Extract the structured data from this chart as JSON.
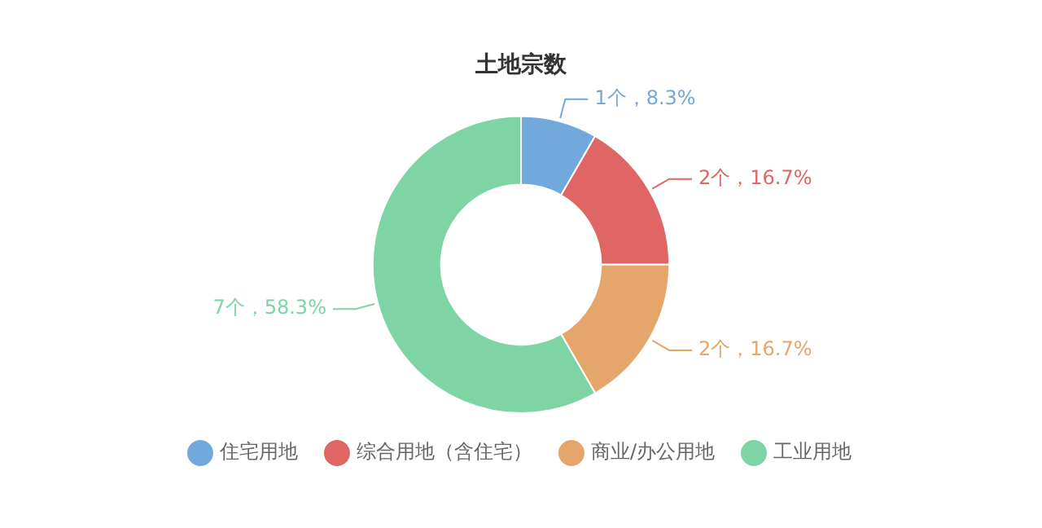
{
  "chart_data": {
    "type": "donut",
    "title": "土地宗数",
    "categories": [
      "住宅用地",
      "综合用地（含住宅）",
      "商业/办公用地",
      "工业用地"
    ],
    "values": [
      1,
      2,
      2,
      7
    ],
    "colors": [
      "#72a9dd",
      "#e06565",
      "#e5a66c",
      "#7fd4a6"
    ],
    "value_labels": [
      "1个，8.3%",
      "2个，16.7%",
      "2个，16.7%",
      "7个，58.3%"
    ],
    "legend": "bottom"
  }
}
